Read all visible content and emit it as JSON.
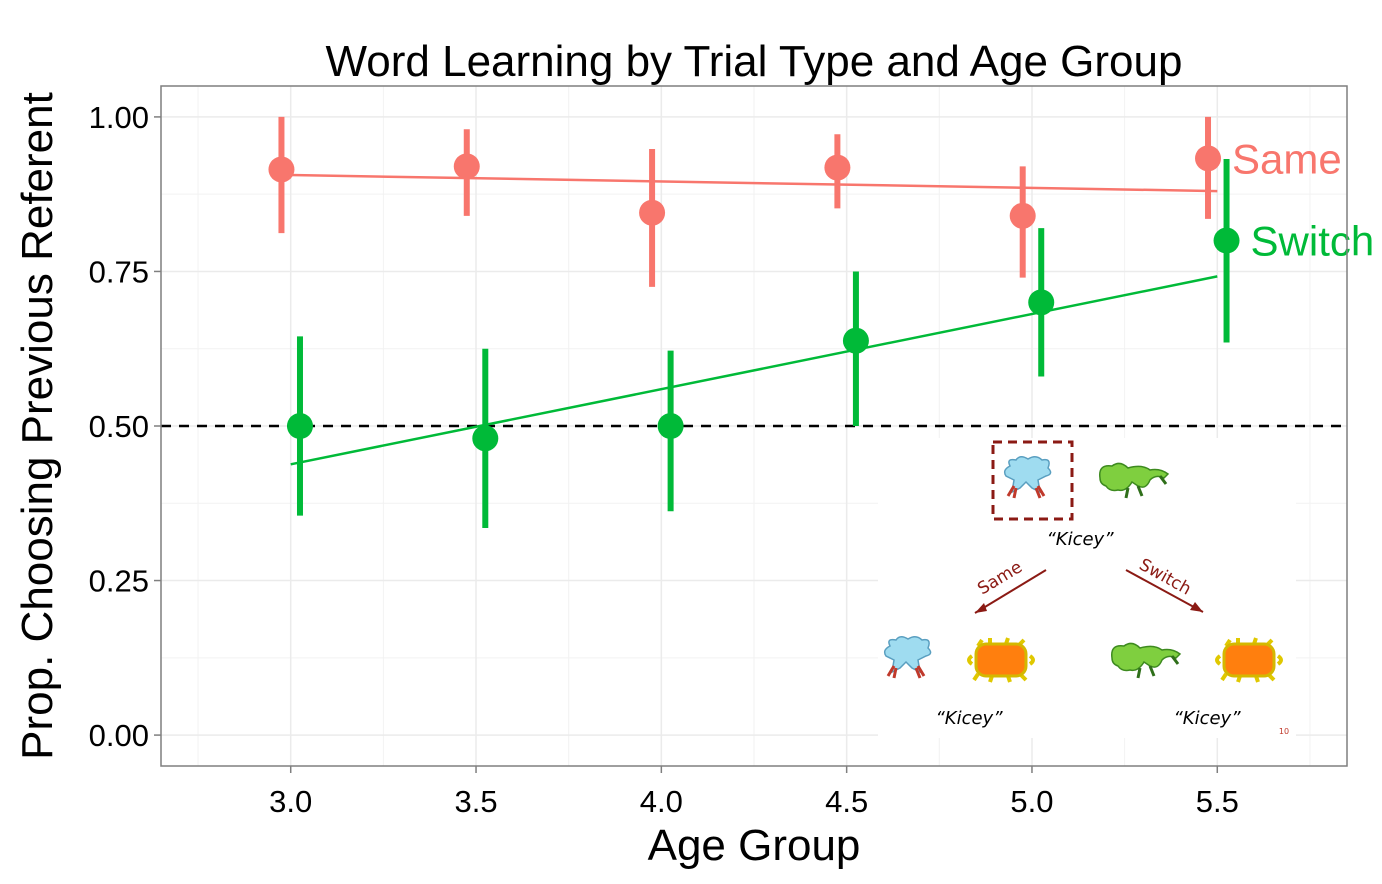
{
  "chart_data": {
    "type": "scatter",
    "title": "Word Learning by Trial Type and Age Group",
    "xlabel": "Age Group",
    "ylabel": "Prop. Choosing Previous Referent",
    "xlim": [
      2.65,
      5.85
    ],
    "ylim": [
      -0.05,
      1.05
    ],
    "xticks": [
      3.0,
      3.5,
      4.0,
      4.5,
      5.0,
      5.5
    ],
    "xtick_labels": [
      "3.0",
      "3.5",
      "4.0",
      "4.5",
      "5.0",
      "5.5"
    ],
    "yticks": [
      0.0,
      0.25,
      0.5,
      0.75,
      1.0
    ],
    "ytick_labels": [
      "0.00",
      "0.25",
      "0.50",
      "0.75",
      "1.00"
    ],
    "grid": true,
    "reference_line": {
      "y": 0.5,
      "style": "dashed"
    },
    "series": [
      {
        "name": "Same",
        "color": "#f8766d",
        "x": [
          3.0,
          3.5,
          4.0,
          4.5,
          5.0,
          5.5
        ],
        "values": [
          0.915,
          0.92,
          0.845,
          0.918,
          0.84,
          0.933
        ],
        "ci_low": [
          0.812,
          0.84,
          0.725,
          0.852,
          0.74,
          0.835
        ],
        "ci_high": [
          1.0,
          0.98,
          0.948,
          0.972,
          0.92,
          1.0
        ],
        "fit": {
          "x": [
            3.0,
            5.5
          ],
          "y": [
            0.906,
            0.88
          ]
        }
      },
      {
        "name": "Switch",
        "color": "#00ba38",
        "x": [
          3.0,
          3.5,
          4.0,
          4.5,
          5.0,
          5.5
        ],
        "values": [
          0.5,
          0.48,
          0.5,
          0.638,
          0.7,
          0.8
        ],
        "ci_low": [
          0.355,
          0.335,
          0.362,
          0.5,
          0.58,
          0.635
        ],
        "ci_high": [
          0.645,
          0.625,
          0.622,
          0.75,
          0.82,
          0.932
        ],
        "fit": {
          "x": [
            3.0,
            5.5
          ],
          "y": [
            0.438,
            0.742
          ]
        }
      }
    ]
  },
  "inset": {
    "top_word": "“Kicey”",
    "same_arrow_label": "Same",
    "switch_arrow_label": "Switch",
    "left_word": "“Kicey”",
    "right_word": "“Kicey”",
    "page_number": "10"
  },
  "colors": {
    "panel_border": "#7f7f7f",
    "grid": "#ebebeb",
    "inset_accent": "#8b1a14",
    "creature_blue": "#9fdcf0",
    "creature_green": "#7fcf3f",
    "creature_orange": "#ff7f0e",
    "creature_yellow": "#f2e23a"
  }
}
